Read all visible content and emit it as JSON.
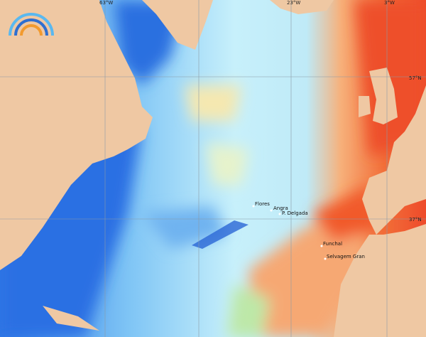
{
  "grid_labels": [
    "63°W",
    "23°W",
    "3°W",
    "57°N",
    "37°N"
  ],
  "places": [
    "Flores",
    "Angra",
    "P. Delgada",
    "Funchal",
    "Selvagem Gran"
  ]
}
